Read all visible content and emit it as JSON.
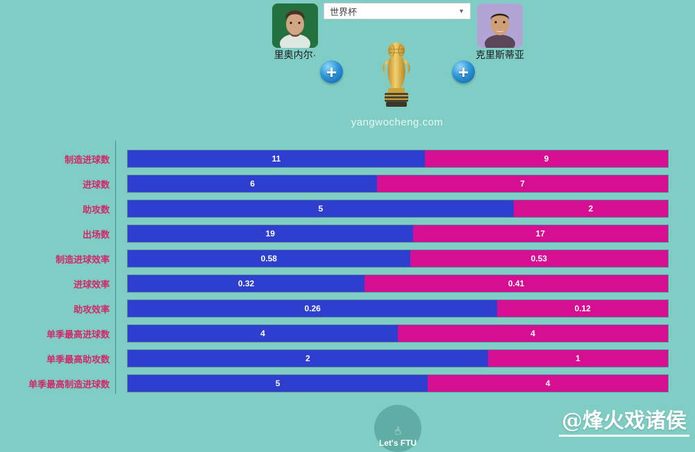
{
  "page": {
    "background_color": "#7fcdc4",
    "watermark": "@烽火戏诸侯",
    "site_caption": "yangwocheng.com"
  },
  "header": {
    "left_player": {
      "name": "里奥内尔·",
      "avatar": "messi-portrait"
    },
    "right_player": {
      "name": "克里斯蒂亚",
      "avatar": "ronaldo-portrait"
    },
    "competition_select": {
      "selected": "世界杯"
    },
    "left_add_label": "+",
    "right_add_label": "+",
    "center_icon": "world-cup-trophy"
  },
  "footer": {
    "logo_text": "Let's FTU"
  },
  "chart_data": {
    "type": "bar",
    "subtype": "horizontal-paired-comparison",
    "title": "",
    "grid": false,
    "legend_position": "none",
    "bar_rule": "each row is a full-width bar split proportionally: left segment = left value / (left+right)",
    "categories": [
      "制造进球数",
      "进球数",
      "助攻数",
      "出场数",
      "制造进球效率",
      "进球效率",
      "助攻效率",
      "单季最高进球数",
      "单季最高助攻数",
      "单季最高制造进球数"
    ],
    "series": [
      {
        "name": "里奥内尔·",
        "color": "#2e3fd0",
        "values": [
          11,
          6,
          5,
          19,
          0.58,
          0.32,
          0.26,
          4,
          2,
          5
        ]
      },
      {
        "name": "克里斯蒂亚",
        "color": "#d50e92",
        "values": [
          9,
          7,
          2,
          17,
          0.53,
          0.41,
          0.12,
          4,
          1,
          4
        ]
      }
    ],
    "value_label_color": "#ffffff",
    "category_label_color": "#d0296a"
  }
}
